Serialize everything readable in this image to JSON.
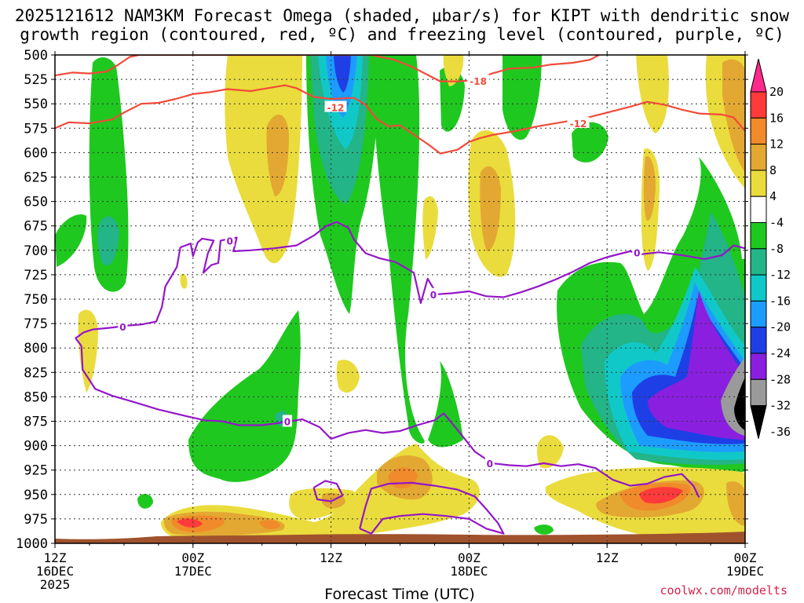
{
  "chart_data": {
    "type": "time-pressure contour",
    "title_line1": "2025121612 NAM3KM Forecast Omega (shaded, μbar/s) for KIPT with dendritic snow",
    "title_line2": "growth region (contoured, red, ºC) and freezing level (contoured, purple, ºC)",
    "xlabel": "Forecast Time (UTC)",
    "credit": "coolwx.com/modelts",
    "y_axis": {
      "range": [
        500,
        1000
      ],
      "ticks": [
        "500",
        "525",
        "550",
        "575",
        "600",
        "625",
        "650",
        "675",
        "700",
        "725",
        "750",
        "775",
        "800",
        "825",
        "850",
        "875",
        "900",
        "925",
        "950",
        "975",
        "1000"
      ]
    },
    "x_axis": {
      "range_hours": [
        0,
        60
      ],
      "ticks": [
        {
          "h": 0,
          "l1": "12Z",
          "l2": "16DEC",
          "l3": "2025"
        },
        {
          "h": 12,
          "l1": "00Z",
          "l2": "17DEC",
          "l3": ""
        },
        {
          "h": 24,
          "l1": "12Z",
          "l2": "",
          "l3": ""
        },
        {
          "h": 36,
          "l1": "00Z",
          "l2": "18DEC",
          "l3": ""
        },
        {
          "h": 48,
          "l1": "12Z",
          "l2": "",
          "l3": ""
        },
        {
          "h": 60,
          "l1": "00Z",
          "l2": "19DEC",
          "l3": ""
        }
      ]
    },
    "colorbar": {
      "labels": [
        "20",
        "16",
        "12",
        "8",
        "4",
        "-4",
        "-8",
        "-12",
        "-16",
        "-20",
        "-24",
        "-28",
        "-32",
        "-36"
      ],
      "colors": [
        "#ff3a3a",
        "#f08a2a",
        "#e3a832",
        "#eadc3c",
        "#ffffff",
        "#1fc81f",
        "#23b487",
        "#10c8c8",
        "#1d9cff",
        "#1f3fe6",
        "#8a1fe0",
        "#9a9a9a"
      ],
      "top_color": "#ff2a8a",
      "bottom_color": "#000000"
    },
    "contour_labels": {
      "dgz": [
        "-18",
        "-12",
        "-12"
      ],
      "freezing": [
        "0",
        "0",
        "0",
        "0",
        "0",
        "0"
      ]
    },
    "series": [
      {
        "name": "-12C isotherm (DGZ top)",
        "color": "#f24a3a",
        "points": [
          [
            0,
            575
          ],
          [
            1.2,
            569
          ],
          [
            3,
            570
          ],
          [
            5,
            566
          ],
          [
            6,
            559
          ],
          [
            7.5,
            550
          ],
          [
            9,
            549
          ],
          [
            10.5,
            545
          ],
          [
            12,
            540
          ],
          [
            13.5,
            538
          ],
          [
            15,
            535
          ],
          [
            17,
            537
          ],
          [
            18.5,
            534
          ],
          [
            20,
            531
          ],
          [
            21,
            534
          ],
          [
            22.5,
            543
          ],
          [
            24,
            545
          ],
          [
            26,
            544
          ],
          [
            27,
            551
          ],
          [
            28,
            566
          ],
          [
            29,
            573
          ],
          [
            30,
            572
          ],
          [
            31,
            580
          ],
          [
            32.5,
            592
          ],
          [
            33.5,
            601
          ],
          [
            35,
            597
          ],
          [
            36,
            589
          ],
          [
            37,
            585
          ],
          [
            38,
            582
          ],
          [
            40,
            578
          ],
          [
            42,
            573
          ],
          [
            44.5,
            568
          ],
          [
            46,
            565
          ],
          [
            48,
            559
          ],
          [
            50,
            553
          ],
          [
            51.5,
            548
          ],
          [
            53,
            551
          ],
          [
            54.5,
            556
          ],
          [
            56,
            560
          ],
          [
            58,
            561
          ],
          [
            59,
            564
          ],
          [
            60,
            578
          ]
        ]
      },
      {
        "name": "-18C isotherm",
        "color": "#f24a3a",
        "points": [
          [
            0,
            521
          ],
          [
            1.5,
            518
          ],
          [
            3,
            519
          ],
          [
            4.5,
            517
          ],
          [
            5.5,
            510
          ],
          [
            6.5,
            502
          ],
          [
            7.3,
            500
          ],
          [
            27.5,
            500
          ],
          [
            29.5,
            505
          ],
          [
            31,
            512
          ],
          [
            32.5,
            521
          ],
          [
            33.5,
            527
          ],
          [
            35,
            527
          ],
          [
            36.5,
            526
          ],
          [
            38,
            519
          ],
          [
            39.5,
            514
          ],
          [
            41.5,
            513
          ],
          [
            43,
            510
          ],
          [
            45,
            508
          ],
          [
            46.5,
            505
          ],
          [
            47.3,
            500
          ]
        ]
      },
      {
        "name": "0C freezing level",
        "color": "#9416c8",
        "points": [
          [
            2.3,
            798
          ],
          [
            1.8,
            790
          ],
          [
            2.5,
            784
          ],
          [
            3.3,
            781
          ],
          [
            5,
            779
          ],
          [
            6.3,
            777
          ],
          [
            7.5,
            776
          ],
          [
            8.8,
            773
          ],
          [
            9.3,
            758
          ],
          [
            9.6,
            737
          ],
          [
            10.6,
            717
          ],
          [
            10.9,
            697
          ],
          [
            11.8,
            693
          ],
          [
            12,
            706
          ],
          [
            12.4,
            692
          ],
          [
            12.8,
            688
          ],
          [
            13.8,
            690
          ],
          [
            13.3,
            703
          ],
          [
            12.9,
            723
          ],
          [
            13.6,
            715
          ],
          [
            14.2,
            713
          ],
          [
            14.4,
            690
          ],
          [
            15.2,
            688
          ],
          [
            15.8,
            687
          ],
          [
            15.6,
            697
          ],
          [
            15.5,
            701
          ],
          [
            17,
            700
          ],
          [
            19,
            698
          ],
          [
            21,
            695
          ],
          [
            22.5,
            685
          ],
          [
            23.6,
            675
          ],
          [
            24.5,
            671
          ],
          [
            25.5,
            677
          ],
          [
            26,
            689
          ],
          [
            27,
            703
          ],
          [
            28.2,
            708
          ],
          [
            29.6,
            712
          ],
          [
            30.5,
            718
          ],
          [
            31.2,
            723
          ],
          [
            31.8,
            754
          ],
          [
            32.4,
            729
          ],
          [
            33.2,
            745
          ],
          [
            34.5,
            744
          ],
          [
            36,
            742
          ],
          [
            37.5,
            747
          ],
          [
            39,
            748
          ],
          [
            40.5,
            743
          ],
          [
            42,
            737
          ],
          [
            43.5,
            730
          ],
          [
            45,
            722
          ],
          [
            46.5,
            713
          ],
          [
            48,
            707
          ],
          [
            50,
            701
          ],
          [
            51,
            704
          ],
          [
            52.5,
            702
          ],
          [
            54.5,
            705
          ],
          [
            56.5,
            709
          ],
          [
            58,
            705
          ],
          [
            59,
            695
          ],
          [
            60,
            698
          ]
        ]
      },
      {
        "name": "0C freezing level (lower)",
        "color": "#9416c8",
        "points": [
          [
            2.3,
            798
          ],
          [
            2.4,
            822
          ],
          [
            3.5,
            842
          ],
          [
            5,
            849
          ],
          [
            6.5,
            854
          ],
          [
            9,
            863
          ],
          [
            11.5,
            870
          ],
          [
            13,
            874
          ],
          [
            14.5,
            875
          ],
          [
            16,
            879
          ],
          [
            18,
            879
          ],
          [
            20,
            876
          ],
          [
            21.5,
            873
          ],
          [
            23,
            881
          ],
          [
            24,
            893
          ],
          [
            25.5,
            887
          ],
          [
            27,
            884
          ],
          [
            28.5,
            887
          ],
          [
            30,
            885
          ],
          [
            31.5,
            879
          ],
          [
            33,
            874
          ],
          [
            33.8,
            867
          ],
          [
            35,
            884
          ],
          [
            36.5,
            906
          ],
          [
            38,
            918
          ],
          [
            39.5,
            920
          ],
          [
            41,
            921
          ],
          [
            42.5,
            918
          ],
          [
            44,
            921
          ],
          [
            45.5,
            919
          ],
          [
            47,
            923
          ],
          [
            48.5,
            935
          ],
          [
            50,
            941
          ],
          [
            51.5,
            939
          ],
          [
            53,
            932
          ],
          [
            54.5,
            929
          ],
          [
            55.5,
            941
          ],
          [
            56,
            953
          ]
        ]
      },
      {
        "name": "0C closed contour (small)",
        "color": "#9416c8",
        "points": [
          [
            22.5,
            943
          ],
          [
            23.5,
            936
          ],
          [
            24.5,
            939
          ],
          [
            25,
            951
          ],
          [
            24,
            957
          ],
          [
            22.8,
            955
          ],
          [
            22.5,
            943
          ]
        ]
      },
      {
        "name": "0C closed contour (lower)",
        "color": "#9416c8",
        "points": [
          [
            26.5,
            985
          ],
          [
            27,
            962
          ],
          [
            27.5,
            944
          ],
          [
            29,
            939
          ],
          [
            31,
            938
          ],
          [
            33,
            941
          ],
          [
            35,
            945
          ],
          [
            36.5,
            952
          ],
          [
            37.5,
            965
          ],
          [
            38.5,
            979
          ],
          [
            39,
            990
          ],
          [
            37.5,
            985
          ],
          [
            36,
            975
          ],
          [
            34,
            972
          ],
          [
            32,
            970
          ],
          [
            30,
            972
          ],
          [
            28.5,
            975
          ],
          [
            27.5,
            990
          ],
          [
            26.5,
            985
          ]
        ]
      }
    ]
  }
}
